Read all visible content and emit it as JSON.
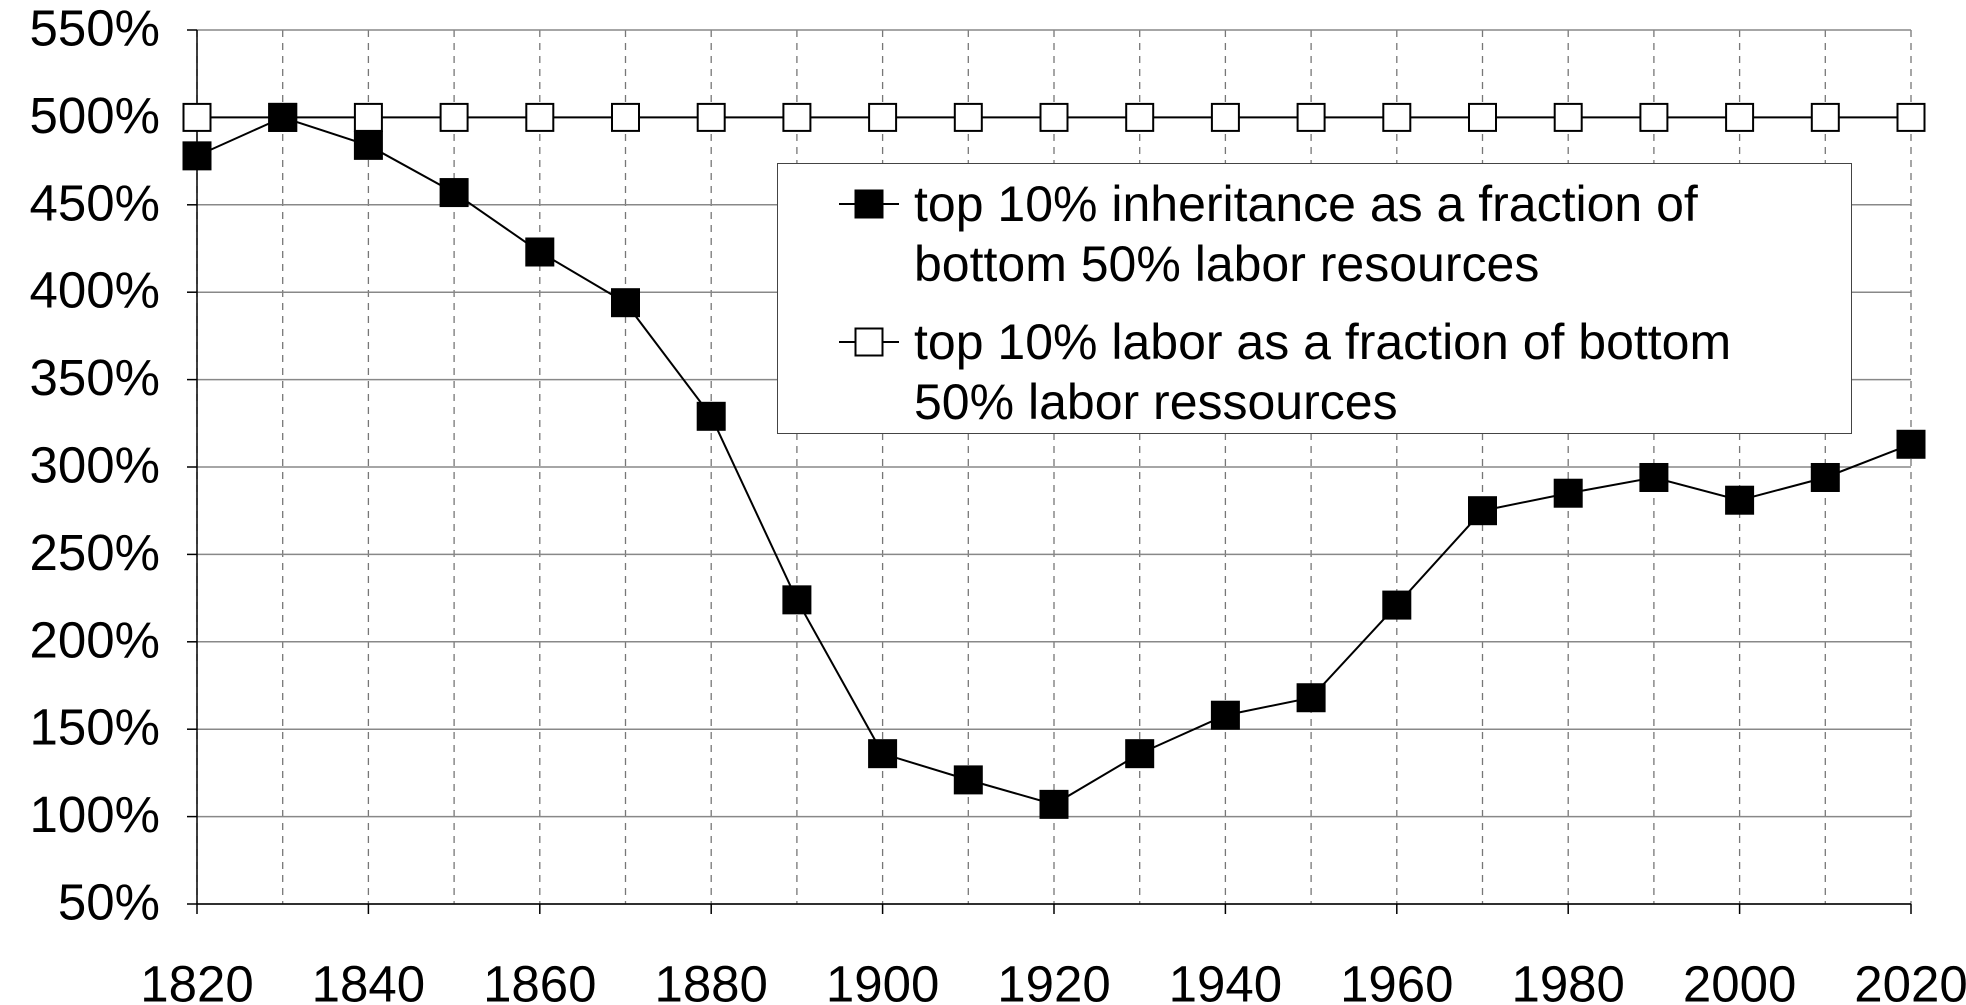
{
  "chart_data": {
    "type": "line",
    "x": [
      1820,
      1830,
      1840,
      1850,
      1860,
      1870,
      1880,
      1890,
      1900,
      1910,
      1920,
      1930,
      1940,
      1950,
      1960,
      1970,
      1980,
      1990,
      2000,
      2010,
      2020
    ],
    "series": [
      {
        "name": "top 10% inheritance as a fraction of bottom 50% labor resources",
        "color": "#000000",
        "marker_fill": "#000000",
        "values": [
          478,
          500,
          484,
          457,
          423,
          394,
          329,
          224,
          136,
          121,
          107,
          136,
          158,
          168,
          221,
          275,
          285,
          294,
          281,
          294,
          313
        ]
      },
      {
        "name": "top 10% labor as a fraction of bottom 50% labor ressources",
        "color": "#000000",
        "marker_fill": "#ffffff",
        "values": [
          500,
          500,
          500,
          500,
          500,
          500,
          500,
          500,
          500,
          500,
          500,
          500,
          500,
          500,
          500,
          500,
          500,
          500,
          500,
          500,
          500
        ]
      }
    ],
    "xlim": [
      1820,
      2020
    ],
    "xticks": [
      1820,
      1840,
      1860,
      1880,
      1900,
      1920,
      1940,
      1960,
      1980,
      2000,
      2020
    ],
    "ylim": [
      50,
      550
    ],
    "yticks": [
      {
        "value": 50,
        "label": "50%"
      },
      {
        "value": 100,
        "label": "100%"
      },
      {
        "value": 150,
        "label": "150%"
      },
      {
        "value": 200,
        "label": "200%"
      },
      {
        "value": 250,
        "label": "250%"
      },
      {
        "value": 300,
        "label": "300%"
      },
      {
        "value": 350,
        "label": "350%"
      },
      {
        "value": 400,
        "label": "400%"
      },
      {
        "value": 450,
        "label": "450%"
      },
      {
        "value": 500,
        "label": "500%"
      },
      {
        "value": 550,
        "label": "550%"
      }
    ],
    "grid": true,
    "legend": "upper right"
  }
}
